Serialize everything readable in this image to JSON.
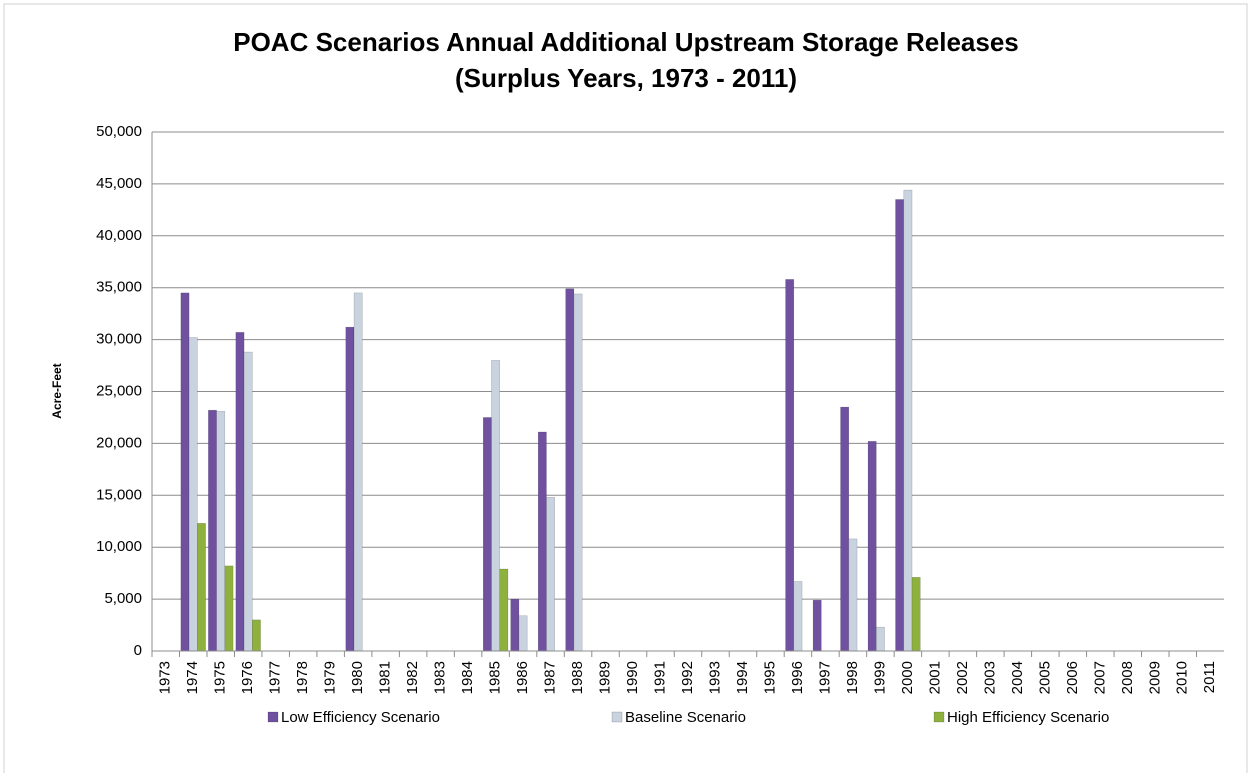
{
  "chart_data": {
    "type": "bar",
    "title": "POAC Scenarios Annual Additional Upstream Storage Releases",
    "subtitle": "(Surplus Years, 1973 - 2011)",
    "y_label": "Acre-Feet",
    "categories": [
      "1973",
      "1974",
      "1975",
      "1976",
      "1977",
      "1978",
      "1979",
      "1980",
      "1981",
      "1982",
      "1983",
      "1984",
      "1985",
      "1986",
      "1987",
      "1988",
      "1989",
      "1990",
      "1991",
      "1992",
      "1993",
      "1994",
      "1995",
      "1996",
      "1997",
      "1998",
      "1999",
      "2000",
      "2001",
      "2002",
      "2003",
      "2004",
      "2005",
      "2006",
      "2007",
      "2008",
      "2009",
      "2010",
      "2011"
    ],
    "series": [
      {
        "name": "Low Efficiency Scenario",
        "color": "#6f51a0",
        "values": [
          0,
          34500,
          23200,
          30700,
          0,
          0,
          0,
          31200,
          0,
          0,
          0,
          0,
          22500,
          5000,
          21100,
          34900,
          0,
          0,
          0,
          0,
          0,
          0,
          0,
          35800,
          4900,
          23500,
          20200,
          43500,
          0,
          0,
          0,
          0,
          0,
          0,
          0,
          0,
          0,
          0,
          0
        ]
      },
      {
        "name": "Baseline Scenario",
        "color": "#c9d2df",
        "values": [
          0,
          30200,
          23100,
          28800,
          0,
          0,
          0,
          34500,
          0,
          0,
          0,
          0,
          28000,
          3400,
          14800,
          34400,
          0,
          0,
          0,
          0,
          0,
          0,
          0,
          6700,
          0,
          10800,
          2300,
          44400,
          0,
          0,
          0,
          0,
          0,
          0,
          0,
          0,
          0,
          0,
          0
        ]
      },
      {
        "name": "High Efficiency Scenario",
        "color": "#8db13c",
        "values": [
          0,
          12300,
          8200,
          3000,
          0,
          0,
          0,
          0,
          0,
          0,
          0,
          0,
          7900,
          0,
          0,
          0,
          0,
          0,
          0,
          0,
          0,
          0,
          0,
          0,
          0,
          0,
          0,
          7100,
          0,
          0,
          0,
          0,
          0,
          0,
          0,
          0,
          0,
          0,
          0
        ]
      }
    ],
    "ylim": [
      0,
      50000
    ],
    "yticks": [
      0,
      {
        "value": 5000,
        "label": "5,000"
      },
      {
        "value": 10000,
        "label": "10,000"
      },
      {
        "value": 15000,
        "label": "15,000"
      },
      {
        "value": 20000,
        "label": "20,000"
      },
      {
        "value": 25000,
        "label": "25,000"
      },
      {
        "value": 30000,
        "label": "30,000"
      },
      {
        "value": 35000,
        "label": "35,000"
      },
      {
        "value": 40000,
        "label": "40,000"
      },
      {
        "value": 45000,
        "label": "45,000"
      },
      {
        "value": 50000,
        "label": "50,000"
      }
    ],
    "grid": true,
    "legend": "bottom"
  }
}
